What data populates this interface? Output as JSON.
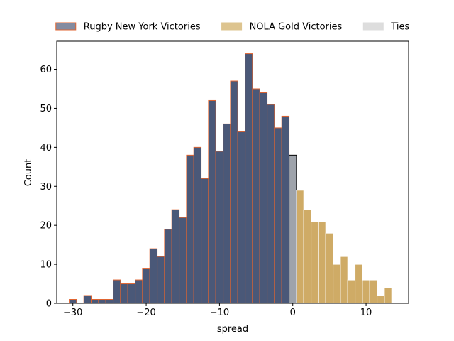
{
  "chart_data": {
    "type": "bar",
    "xlabel": "spread",
    "ylabel": "Count",
    "xlim": [
      -32.2,
      15.8
    ],
    "ylim": [
      0,
      67.2
    ],
    "x_ticks": [
      -30,
      -20,
      -10,
      0,
      10
    ],
    "x_tick_labels": [
      "−30",
      "−20",
      "−10",
      "0",
      "10"
    ],
    "y_ticks": [
      0,
      10,
      20,
      30,
      40,
      50,
      60
    ],
    "y_tick_labels": [
      "0",
      "10",
      "20",
      "30",
      "40",
      "50",
      "60"
    ],
    "bin_width": 1,
    "legend_position": "top, outside plot area",
    "grid": false,
    "series": [
      {
        "name": "Rugby New York Victories",
        "color": "#4a5878",
        "edge_color": "#e06430",
        "bins": [
          {
            "x": -30,
            "count": 1
          },
          {
            "x": -29,
            "count": 0
          },
          {
            "x": -28,
            "count": 2
          },
          {
            "x": -27,
            "count": 1
          },
          {
            "x": -26,
            "count": 1
          },
          {
            "x": -25,
            "count": 1
          },
          {
            "x": -24,
            "count": 6
          },
          {
            "x": -23,
            "count": 5
          },
          {
            "x": -22,
            "count": 5
          },
          {
            "x": -21,
            "count": 6
          },
          {
            "x": -20,
            "count": 9
          },
          {
            "x": -19,
            "count": 14
          },
          {
            "x": -18,
            "count": 12
          },
          {
            "x": -17,
            "count": 19
          },
          {
            "x": -16,
            "count": 24
          },
          {
            "x": -15,
            "count": 22
          },
          {
            "x": -14,
            "count": 38
          },
          {
            "x": -13,
            "count": 40
          },
          {
            "x": -12,
            "count": 32
          },
          {
            "x": -11,
            "count": 52
          },
          {
            "x": -10,
            "count": 39
          },
          {
            "x": -9,
            "count": 46
          },
          {
            "x": -8,
            "count": 57
          },
          {
            "x": -7,
            "count": 44
          },
          {
            "x": -6,
            "count": 64
          },
          {
            "x": -5,
            "count": 55
          },
          {
            "x": -4,
            "count": 54
          },
          {
            "x": -3,
            "count": 51
          },
          {
            "x": -2,
            "count": 45
          },
          {
            "x": -1,
            "count": 48
          }
        ]
      },
      {
        "name": "Ties",
        "color": "#9ea3ab",
        "edge_color": "#000000",
        "bins": [
          {
            "x": 0,
            "count": 38
          }
        ]
      },
      {
        "name": "NOLA Gold Victories",
        "color": "#cfab66",
        "edge_color": "#ffffff",
        "bins": [
          {
            "x": 1,
            "count": 29
          },
          {
            "x": 2,
            "count": 24
          },
          {
            "x": 3,
            "count": 21
          },
          {
            "x": 4,
            "count": 21
          },
          {
            "x": 5,
            "count": 18
          },
          {
            "x": 6,
            "count": 10
          },
          {
            "x": 7,
            "count": 12
          },
          {
            "x": 8,
            "count": 6
          },
          {
            "x": 9,
            "count": 10
          },
          {
            "x": 10,
            "count": 6
          },
          {
            "x": 11,
            "count": 6
          },
          {
            "x": 12,
            "count": 2
          },
          {
            "x": 13,
            "count": 4
          }
        ]
      }
    ],
    "legend": [
      {
        "label": "Rugby New York Victories",
        "color": "#848ba0",
        "edge_color": "#e06430"
      },
      {
        "label": "NOLA Gold Victories",
        "color": "#ddc48f",
        "edge_color": "#ddc48f"
      },
      {
        "label": "Ties",
        "color": "#dddddd",
        "edge_color": "#dddddd"
      }
    ]
  }
}
